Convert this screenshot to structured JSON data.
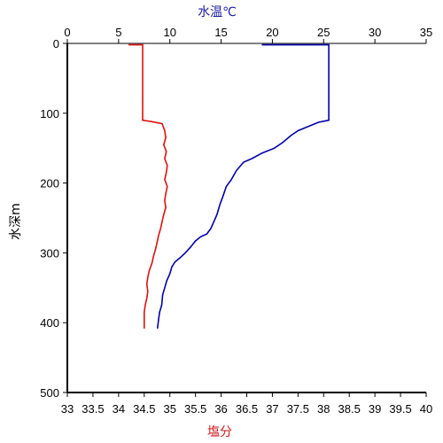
{
  "chart_data": {
    "type": "line",
    "y_axis": {
      "label": "水深m",
      "range": [
        0,
        500
      ],
      "inverted": true,
      "ticks": [
        "0",
        "100",
        "200",
        "300",
        "400",
        "500"
      ]
    },
    "x_axis_top": {
      "label": "水温℃",
      "range": [
        0,
        35
      ],
      "color": "#1a1aa6",
      "ticks": [
        "0",
        "5",
        "10",
        "15",
        "20",
        "25",
        "30",
        "35"
      ]
    },
    "x_axis_bottom": {
      "label": "塩分",
      "range": [
        33,
        40
      ],
      "color": "#cc1a1a",
      "ticks": [
        "33",
        "33.5",
        "34",
        "34.5",
        "35",
        "35.5",
        "36",
        "36.5",
        "37",
        "37.5",
        "38",
        "38.5",
        "39",
        "39.5",
        "40"
      ]
    },
    "series": [
      {
        "axis": "top",
        "color": "#0000aa",
        "points": [
          [
            19.0,
            2
          ],
          [
            25.5,
            2
          ],
          [
            25.5,
            80
          ],
          [
            25.5,
            110
          ],
          [
            24.5,
            113
          ],
          [
            23.5,
            119
          ],
          [
            22.5,
            125
          ],
          [
            21.8,
            132
          ],
          [
            21.0,
            142
          ],
          [
            20.2,
            150
          ],
          [
            19.0,
            157
          ],
          [
            18.0,
            165
          ],
          [
            17.2,
            170
          ],
          [
            16.5,
            182
          ],
          [
            16.0,
            195
          ],
          [
            15.5,
            205
          ],
          [
            15.2,
            218
          ],
          [
            14.9,
            230
          ],
          [
            14.6,
            245
          ],
          [
            14.3,
            255
          ],
          [
            14.0,
            265
          ],
          [
            13.6,
            273
          ],
          [
            13.0,
            277
          ],
          [
            12.5,
            283
          ],
          [
            12.0,
            292
          ],
          [
            11.5,
            300
          ],
          [
            11.0,
            307
          ],
          [
            10.5,
            313
          ],
          [
            10.2,
            320
          ],
          [
            10.0,
            330
          ],
          [
            9.7,
            340
          ],
          [
            9.5,
            350
          ],
          [
            9.3,
            360
          ],
          [
            9.2,
            375
          ],
          [
            9.0,
            385
          ],
          [
            8.9,
            395
          ],
          [
            8.8,
            408
          ]
        ]
      },
      {
        "axis": "bottom",
        "color": "#dd1111",
        "points": [
          [
            34.2,
            2
          ],
          [
            34.47,
            2
          ],
          [
            34.47,
            80
          ],
          [
            34.47,
            110
          ],
          [
            34.65,
            112
          ],
          [
            34.85,
            115
          ],
          [
            34.9,
            125
          ],
          [
            34.92,
            135
          ],
          [
            34.88,
            145
          ],
          [
            34.93,
            155
          ],
          [
            34.9,
            165
          ],
          [
            34.95,
            175
          ],
          [
            34.93,
            185
          ],
          [
            34.9,
            195
          ],
          [
            34.95,
            205
          ],
          [
            34.92,
            215
          ],
          [
            34.9,
            225
          ],
          [
            34.92,
            235
          ],
          [
            34.88,
            245
          ],
          [
            34.85,
            255
          ],
          [
            34.82,
            265
          ],
          [
            34.78,
            275
          ],
          [
            34.75,
            285
          ],
          [
            34.72,
            295
          ],
          [
            34.68,
            305
          ],
          [
            34.65,
            315
          ],
          [
            34.6,
            325
          ],
          [
            34.57,
            335
          ],
          [
            34.55,
            345
          ],
          [
            34.57,
            355
          ],
          [
            34.55,
            365
          ],
          [
            34.52,
            375
          ],
          [
            34.5,
            385
          ],
          [
            34.5,
            395
          ],
          [
            34.5,
            408
          ]
        ]
      }
    ]
  }
}
